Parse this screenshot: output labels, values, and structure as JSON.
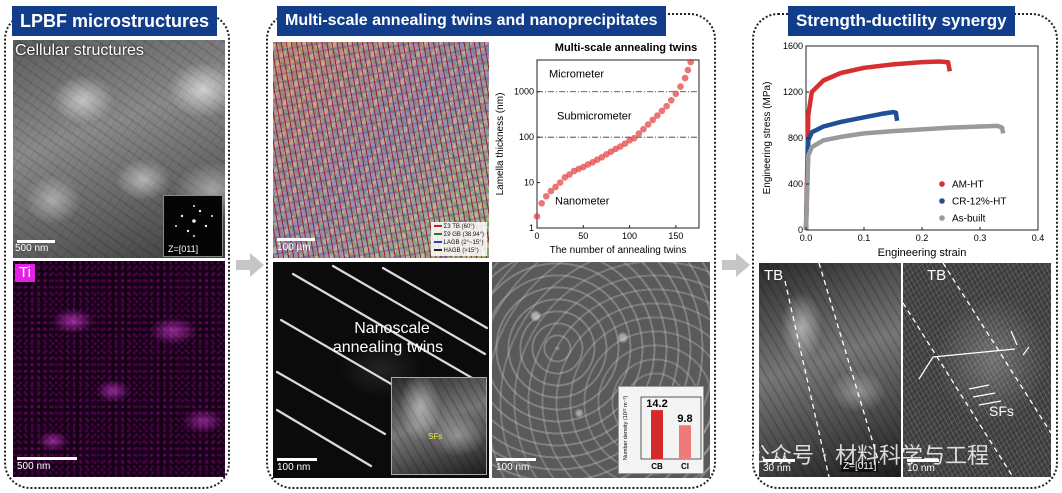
{
  "panels": {
    "left": {
      "title": "LPBF  microstructures"
    },
    "middle": {
      "title": "Multi-scale annealing twins and nanoprecipitates"
    },
    "right": {
      "title": "Strength-ductility synergy"
    }
  },
  "left": {
    "top_image": {
      "label": "Cellular structures",
      "scale_bar": "500 nm",
      "zone_axis": "Z=[011]"
    },
    "bottom_image": {
      "element": "Ti",
      "scale_bar": "500 nm"
    }
  },
  "middle": {
    "ebsd": {
      "scale_bar": "100 µm",
      "legend": [
        "Σ3 TB (60°)",
        "Σ9 GB (38.94°)",
        "LAGB (2°~15°)",
        "HAGB (>15°)"
      ]
    },
    "twin_image": {
      "label_line1": "Nanoscale",
      "label_line2": "annealing twins",
      "scale_bar": "100 nm",
      "inset_label": "SFs"
    },
    "sem_image": {
      "scale_bar": "100 nm",
      "inset": {
        "ylabel": "Number density (10²² m⁻³)",
        "values": [
          14.2,
          9.8
        ],
        "value_labels": [
          "14.2",
          "9.8"
        ],
        "categories": [
          "CB",
          "CI"
        ]
      }
    }
  },
  "right": {
    "tb_left": {
      "label": "TB",
      "scale_bar": "30 nm",
      "zone_axis": "Z=[011]"
    },
    "tb_right": {
      "label": "TB",
      "scale_bar": "10 nm",
      "sf_label": "SFs"
    }
  },
  "watermark": "公众号 · 材料科学与工程",
  "colors": {
    "header_bg": "#123d8a",
    "am_ht": "#d62f2f",
    "cr_ht": "#1f4f96",
    "as_built": "#9a9a9a",
    "twin_points": "#e23b3b",
    "ti_map": "#ff33ff"
  },
  "chart_data": [
    {
      "type": "scatter",
      "title": "Multi-scale annealing twins",
      "xlabel": "The number of annealing twins",
      "ylabel": "Lamella thickness (nm)",
      "xlim": [
        0,
        175
      ],
      "ylim": [
        1,
        5000
      ],
      "yscale": "log",
      "xticks": [
        "0",
        "50",
        "100",
        "150"
      ],
      "yticks": [
        "1",
        "10",
        "100",
        "1000"
      ],
      "reference_lines": [
        100,
        1000
      ],
      "regions": [
        "Micrometer",
        "Submicrometer",
        "Nanometer"
      ],
      "series": [
        {
          "x": [
            0,
            5,
            10,
            15,
            20,
            25,
            30,
            35,
            40,
            45,
            50,
            55,
            60,
            65,
            70,
            75,
            80,
            85,
            90,
            95,
            100,
            105,
            110,
            115,
            120,
            125,
            130,
            135,
            140,
            145,
            150,
            155,
            160,
            163,
            166
          ],
          "y": [
            1.8,
            3.5,
            5,
            6.5,
            8,
            10,
            13,
            15,
            18,
            20,
            22,
            25,
            28,
            32,
            36,
            42,
            48,
            55,
            62,
            72,
            85,
            95,
            120,
            150,
            190,
            240,
            300,
            380,
            480,
            650,
            900,
            1300,
            2000,
            3000,
            4500
          ]
        }
      ]
    },
    {
      "type": "line",
      "xlabel": "Engineering strain",
      "ylabel": "Engineering stress (MPa)",
      "xlim": [
        0,
        0.4
      ],
      "ylim": [
        0,
        1600
      ],
      "xticks": [
        "0.0",
        "0.1",
        "0.2",
        "0.3",
        "0.4"
      ],
      "yticks": [
        "0",
        "400",
        "800",
        "1200",
        "1600"
      ],
      "legend_position": "bottom-right",
      "series": [
        {
          "name": "AM-HT",
          "x": [
            0,
            0.004,
            0.01,
            0.03,
            0.06,
            0.1,
            0.15,
            0.2,
            0.23,
            0.245,
            0.248
          ],
          "y": [
            0,
            1000,
            1200,
            1300,
            1365,
            1410,
            1440,
            1460,
            1465,
            1458,
            1380
          ]
        },
        {
          "name": "CR-12%-HT",
          "x": [
            0,
            0.004,
            0.01,
            0.03,
            0.06,
            0.1,
            0.13,
            0.15,
            0.155,
            0.157
          ],
          "y": [
            0,
            780,
            850,
            900,
            940,
            980,
            1010,
            1025,
            1020,
            950
          ]
        },
        {
          "name": "As-built",
          "x": [
            0,
            0.004,
            0.01,
            0.03,
            0.06,
            0.1,
            0.15,
            0.2,
            0.25,
            0.3,
            0.33,
            0.338,
            0.34
          ],
          "y": [
            0,
            650,
            720,
            780,
            810,
            840,
            860,
            875,
            890,
            900,
            905,
            890,
            840
          ]
        }
      ]
    }
  ]
}
